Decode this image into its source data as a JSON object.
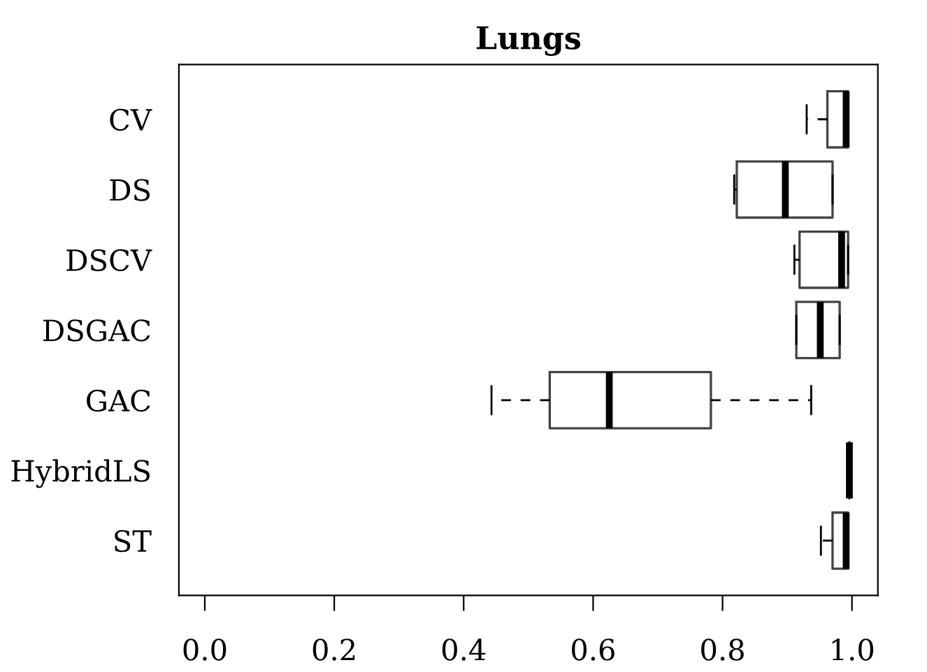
{
  "chart_data": {
    "type": "box",
    "title": "Lungs",
    "orientation": "horizontal",
    "categories": [
      "CV",
      "DS",
      "DSCV",
      "DSGAC",
      "GAC",
      "HybridLS",
      "ST"
    ],
    "boxes": [
      {
        "low": 0.93,
        "q1": 0.962,
        "median": 0.991,
        "q3": 0.994,
        "high": 0.994
      },
      {
        "low": 0.818,
        "q1": 0.822,
        "median": 0.897,
        "q3": 0.97,
        "high": 0.97
      },
      {
        "low": 0.911,
        "q1": 0.919,
        "median": 0.984,
        "q3": 0.994,
        "high": 0.994
      },
      {
        "low": 0.914,
        "q1": 0.914,
        "median": 0.951,
        "q3": 0.981,
        "high": 0.981
      },
      {
        "low": 0.443,
        "q1": 0.533,
        "median": 0.625,
        "q3": 0.782,
        "high": 0.937
      },
      {
        "low": 0.996,
        "q1": 0.996,
        "median": 0.996,
        "q3": 0.996,
        "high": 0.996
      },
      {
        "low": 0.952,
        "q1": 0.97,
        "median": 0.991,
        "q3": 0.994,
        "high": 0.994
      }
    ],
    "xlim": [
      -0.04,
      1.04
    ],
    "xticks": [
      {
        "value": 0,
        "label": "0.0"
      },
      {
        "value": 0.2,
        "label": "0.2"
      },
      {
        "value": 0.4,
        "label": "0.4"
      },
      {
        "value": 0.6,
        "label": "0.6"
      },
      {
        "value": 0.8,
        "label": "0.8"
      },
      {
        "value": 1,
        "label": "1.0"
      }
    ],
    "grid": false,
    "legend": false
  }
}
